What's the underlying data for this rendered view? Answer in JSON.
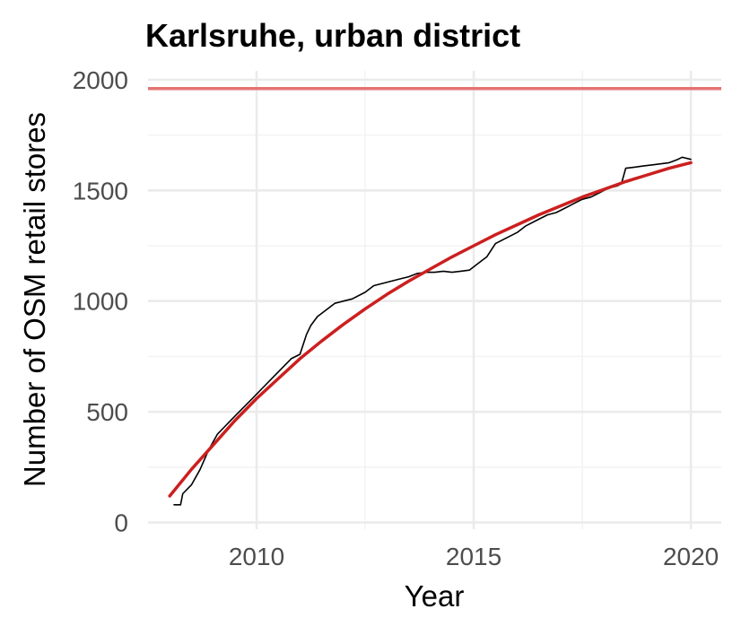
{
  "chart_data": {
    "type": "line",
    "title": "Karlsruhe, urban district",
    "xlabel": "Year",
    "ylabel": "Number of OSM retail stores",
    "xlim": [
      2007.5,
      2020.7
    ],
    "ylim": [
      -30,
      2040
    ],
    "x_ticks": [
      2010,
      2015,
      2020
    ],
    "x_tick_labels": [
      "2010",
      "2015",
      "2020"
    ],
    "y_ticks": [
      0,
      500,
      1000,
      1500,
      2000
    ],
    "y_tick_labels": [
      "0",
      "500",
      "1000",
      "1500",
      "2000"
    ],
    "grid": true,
    "legend": "none",
    "reference_line": {
      "y": 1960,
      "color": "#e57373"
    },
    "series": [
      {
        "style": "observed",
        "color": "#000000",
        "x": [
          2008.1,
          2008.25,
          2008.3,
          2008.5,
          2008.7,
          2008.9,
          2009.1,
          2009.3,
          2009.5,
          2009.7,
          2009.9,
          2010.2,
          2010.5,
          2010.8,
          2011.0,
          2011.15,
          2011.25,
          2011.4,
          2011.6,
          2011.8,
          2012.0,
          2012.2,
          2012.5,
          2012.7,
          2012.9,
          2013.1,
          2013.3,
          2013.5,
          2013.7,
          2013.9,
          2014.1,
          2014.3,
          2014.5,
          2014.7,
          2014.9,
          2015.1,
          2015.3,
          2015.5,
          2015.7,
          2015.9,
          2016.0,
          2016.2,
          2016.5,
          2016.7,
          2016.9,
          2017.1,
          2017.3,
          2017.5,
          2017.7,
          2017.9,
          2018.1,
          2018.3,
          2018.4,
          2018.5,
          2018.7,
          2018.9,
          2019.1,
          2019.3,
          2019.5,
          2019.7,
          2019.8,
          2020.0
        ],
        "values": [
          80,
          80,
          130,
          170,
          240,
          330,
          400,
          440,
          480,
          520,
          560,
          620,
          680,
          740,
          760,
          850,
          890,
          930,
          960,
          990,
          1000,
          1010,
          1040,
          1070,
          1080,
          1090,
          1100,
          1110,
          1125,
          1130,
          1130,
          1135,
          1130,
          1135,
          1140,
          1170,
          1200,
          1260,
          1280,
          1300,
          1310,
          1340,
          1370,
          1390,
          1400,
          1420,
          1440,
          1460,
          1470,
          1490,
          1510,
          1520,
          1530,
          1600,
          1605,
          1610,
          1615,
          1620,
          1625,
          1640,
          1650,
          1640
        ]
      },
      {
        "style": "fitted",
        "color": "#cc1f1f",
        "x": [
          2008.0,
          2008.5,
          2009.0,
          2009.5,
          2010.0,
          2010.5,
          2011.0,
          2011.5,
          2012.0,
          2012.5,
          2013.0,
          2013.5,
          2014.0,
          2014.5,
          2015.0,
          2015.5,
          2016.0,
          2016.5,
          2017.0,
          2017.5,
          2018.0,
          2018.5,
          2019.0,
          2019.5,
          2020.0
        ],
        "values": [
          120,
          240,
          350,
          460,
          560,
          650,
          740,
          820,
          895,
          965,
          1030,
          1090,
          1145,
          1200,
          1250,
          1300,
          1345,
          1390,
          1430,
          1470,
          1505,
          1540,
          1570,
          1600,
          1625
        ]
      }
    ]
  }
}
